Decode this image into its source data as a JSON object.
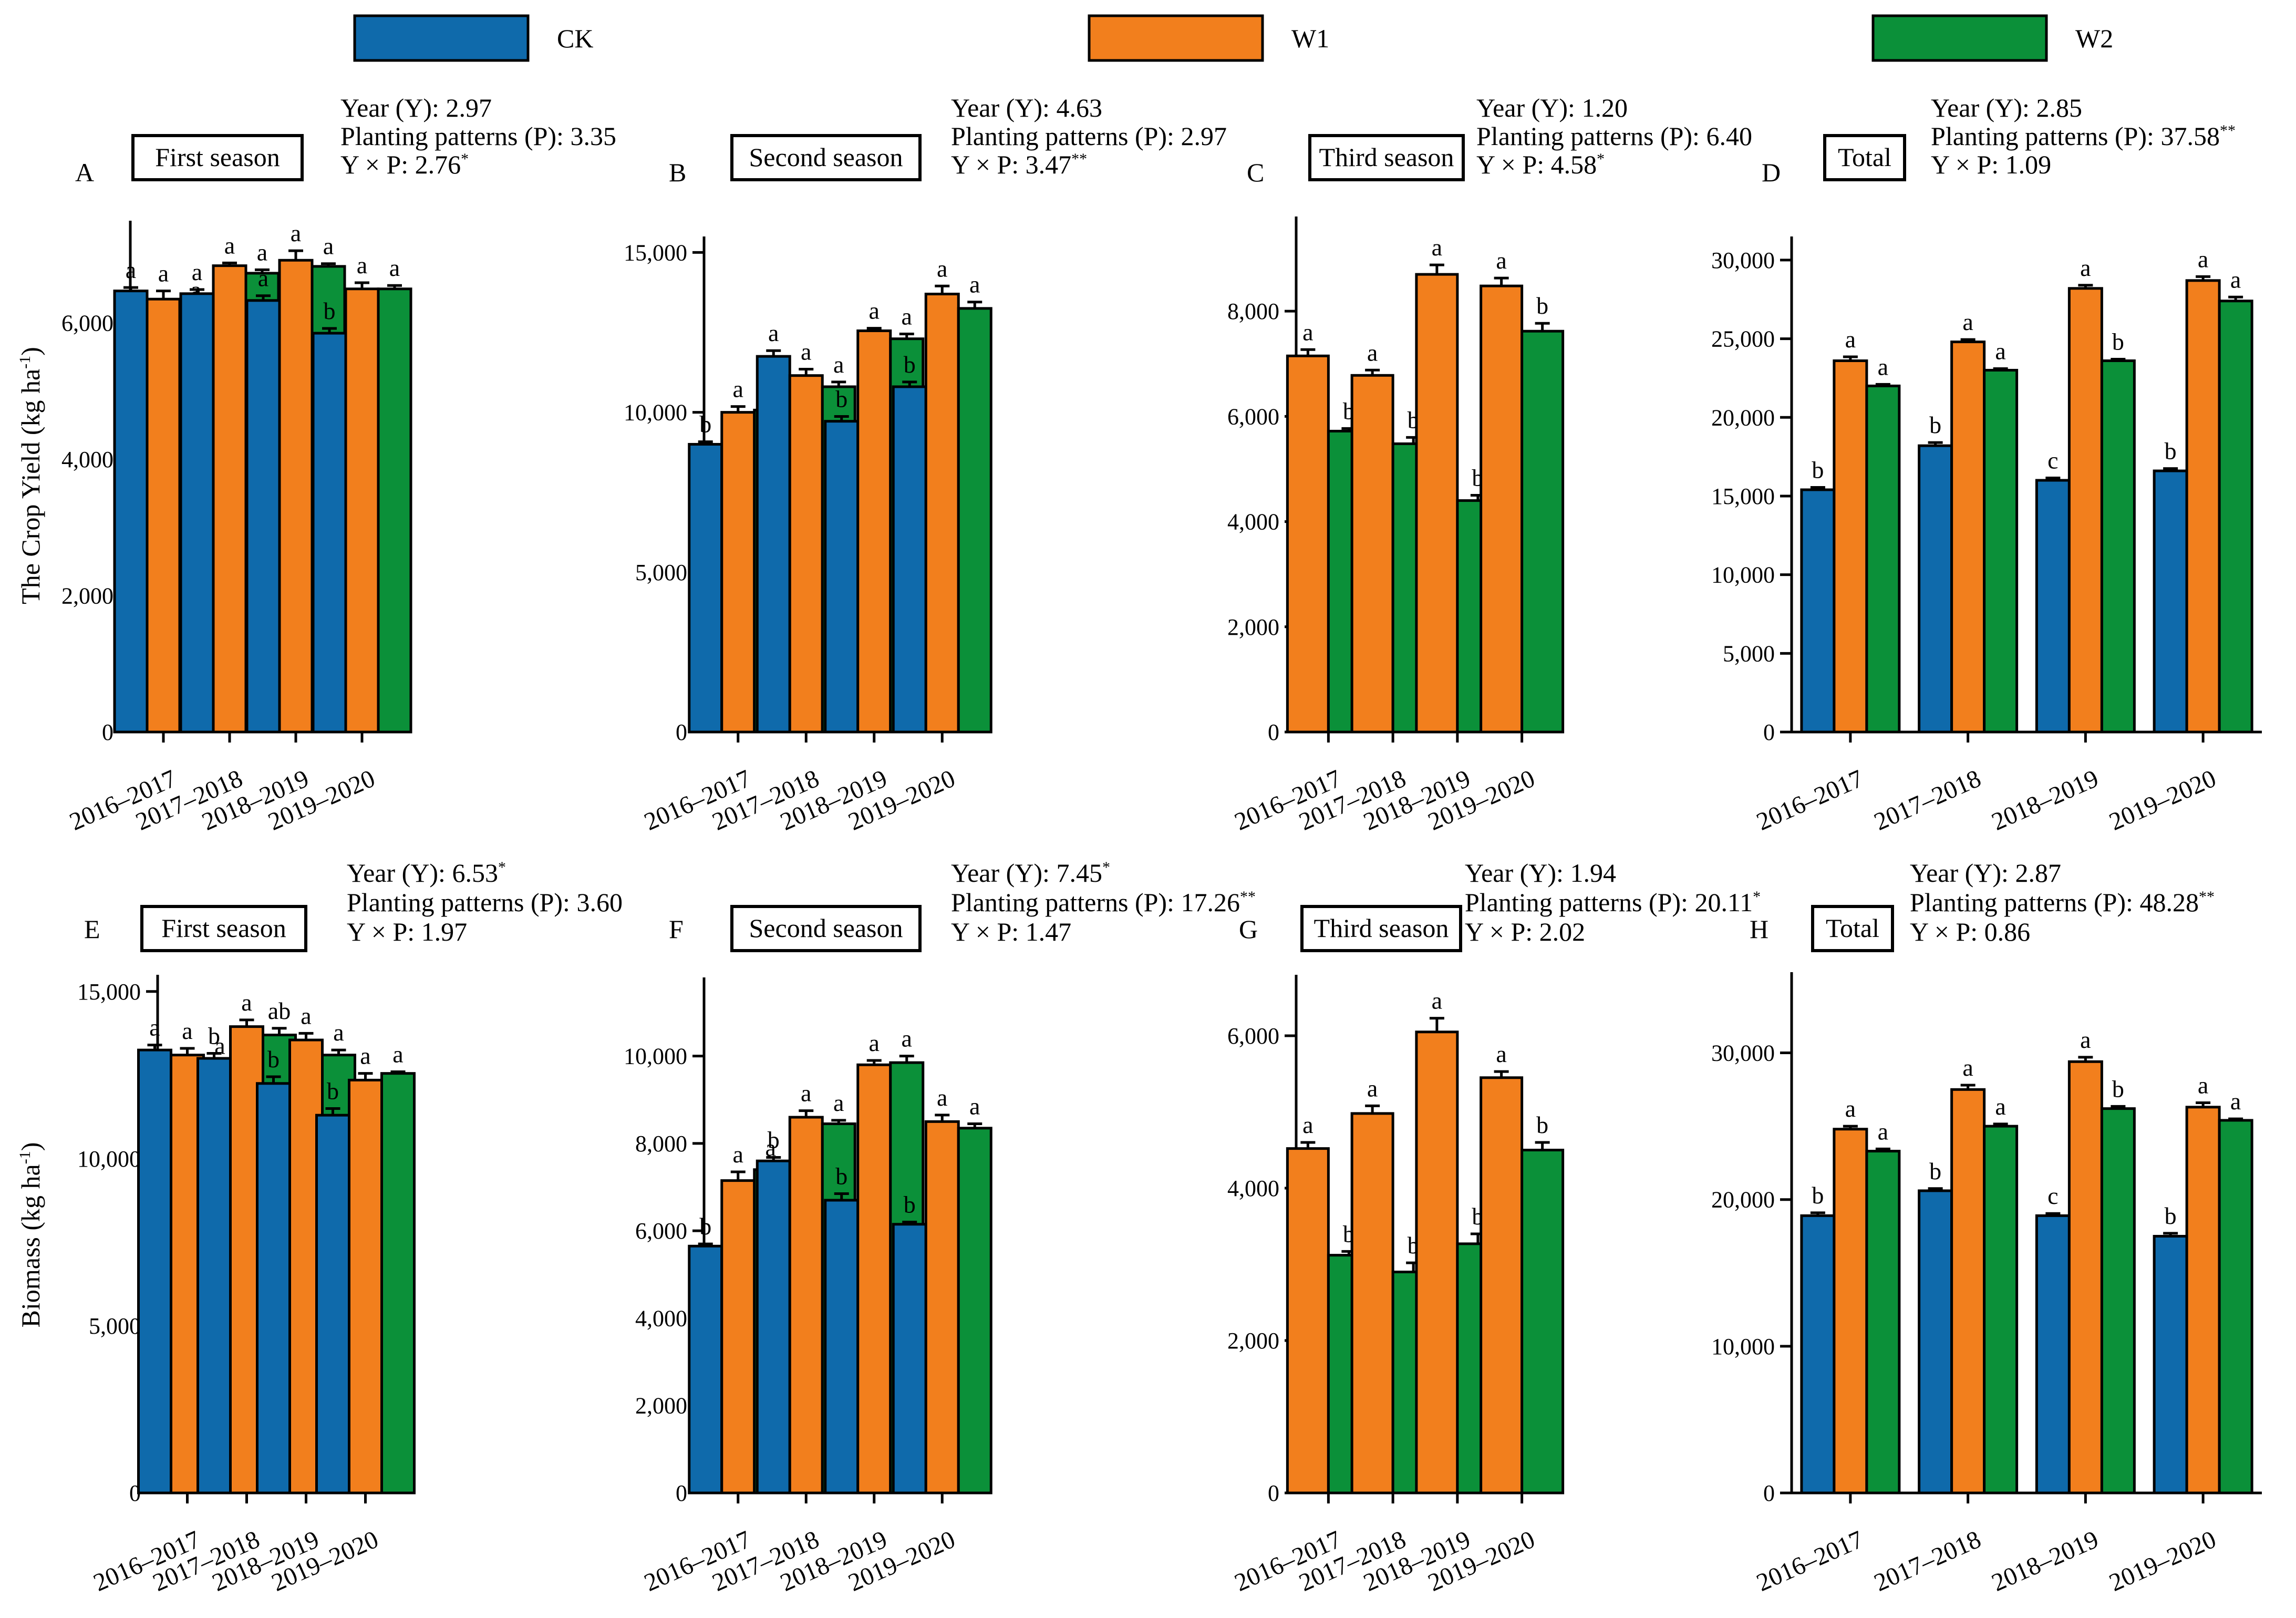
{
  "legend": {
    "items": [
      {
        "name": "CK",
        "color": "#0f6aab"
      },
      {
        "name": "W1",
        "color": "#f27f1d"
      },
      {
        "name": "W2",
        "color": "#0b9039"
      }
    ]
  },
  "y_labels": {
    "yield": "The Crop Yield (kg ha",
    "biomass": "Biomass (kg ha",
    "unit_sup": "-1",
    "close": ")"
  },
  "chart_data": [
    {
      "type": "bar",
      "panel": "A",
      "title": "First season",
      "stats": [
        {
          "text": "Year (Y): 2.97",
          "sup": ""
        },
        {
          "text": "Planting patterns (P): 3.35",
          "sup": ""
        },
        {
          "text": "Y × P: 2.76",
          "sup": "*"
        }
      ],
      "categories": [
        "2016–2017",
        "2017–2018",
        "2018–2019",
        "2019–2020"
      ],
      "series": [
        {
          "name": "CK",
          "values": [
            6470,
            6430,
            6330,
            5850
          ],
          "errors": [
            50,
            60,
            70,
            70
          ],
          "letters": [
            "a",
            "a",
            "a",
            "b"
          ]
        },
        {
          "name": "W1",
          "values": [
            6350,
            6840,
            6920,
            6500
          ],
          "errors": [
            120,
            40,
            140,
            90
          ],
          "letters": [
            "a",
            "a",
            "a",
            "a"
          ]
        },
        {
          "name": "W2",
          "values": [
            6190,
            6730,
            6830,
            6500
          ],
          "errors": [
            40,
            50,
            40,
            50
          ],
          "letters": [
            "a",
            "a",
            "a",
            "a"
          ]
        }
      ],
      "ylim": [
        0,
        7500
      ],
      "yticks": [
        0,
        2000,
        4000,
        6000
      ],
      "yticklabels": [
        "0",
        "2,000",
        "4,000",
        "6,000"
      ],
      "ylabel": "yield"
    },
    {
      "type": "bar",
      "panel": "B",
      "title": "Second season",
      "stats": [
        {
          "text": "Year (Y): 4.63",
          "sup": ""
        },
        {
          "text": "Planting patterns (P): 2.97",
          "sup": ""
        },
        {
          "text": "Y × P: 3.47",
          "sup": "**"
        }
      ],
      "categories": [
        "2016–2017",
        "2017–2018",
        "2018–2019",
        "2019–2020"
      ],
      "series": [
        {
          "name": "CK",
          "values": [
            9000,
            11750,
            9720,
            10800
          ],
          "errors": [
            80,
            180,
            150,
            150
          ],
          "letters": [
            "b",
            "a",
            "b",
            "b"
          ]
        },
        {
          "name": "W1",
          "values": [
            10000,
            11150,
            12550,
            13700
          ],
          "errors": [
            180,
            200,
            80,
            250
          ],
          "letters": [
            "a",
            "a",
            "a",
            "a"
          ]
        },
        {
          "name": "W2",
          "values": [
            10070,
            10800,
            12300,
            13250
          ],
          "errors": [
            80,
            150,
            150,
            200
          ],
          "letters": [
            "a",
            "a",
            "a",
            "a"
          ]
        }
      ],
      "ylim": [
        0,
        15500
      ],
      "yticks": [
        0,
        5000,
        10000,
        15000
      ],
      "yticklabels": [
        "0",
        "5,000",
        "10,000",
        "15,000"
      ]
    },
    {
      "type": "bar",
      "panel": "C",
      "title": "Third season",
      "stats": [
        {
          "text": "Year (Y): 1.20",
          "sup": ""
        },
        {
          "text": "Planting patterns (P): 6.40",
          "sup": ""
        },
        {
          "text": "Y × P: 4.58",
          "sup": "*"
        }
      ],
      "categories": [
        "2016–2017",
        "2017–2018",
        "2018–2019",
        "2019–2020"
      ],
      "series": [
        {
          "name": "W1",
          "values": [
            7150,
            6780,
            8700,
            8480
          ],
          "errors": [
            120,
            100,
            180,
            150
          ],
          "letters": [
            "a",
            "a",
            "a",
            "a"
          ]
        },
        {
          "name": "W2",
          "values": [
            5720,
            5480,
            4400,
            7620
          ],
          "errors": [
            50,
            120,
            100,
            150
          ],
          "letters": [
            "b",
            "b",
            "b",
            "b"
          ]
        }
      ],
      "ylim": [
        0,
        9800
      ],
      "yticks": [
        0,
        2000,
        4000,
        6000,
        8000
      ],
      "yticklabels": [
        "0",
        "2,000",
        "4,000",
        "6,000",
        "8,000"
      ]
    },
    {
      "type": "bar",
      "panel": "D",
      "title": "Total",
      "stats": [
        {
          "text": "Year (Y): 2.85",
          "sup": ""
        },
        {
          "text": "Planting patterns (P): 37.58",
          "sup": "**"
        },
        {
          "text": "Y × P: 1.09",
          "sup": ""
        }
      ],
      "categories": [
        "2016–2017",
        "2017–2018",
        "2018–2019",
        "2019–2020"
      ],
      "series": [
        {
          "name": "CK",
          "values": [
            15400,
            18200,
            16000,
            16600
          ],
          "errors": [
            150,
            200,
            150,
            150
          ],
          "letters": [
            "b",
            "b",
            "c",
            "b"
          ]
        },
        {
          "name": "W1",
          "values": [
            23600,
            24800,
            28200,
            28700
          ],
          "errors": [
            250,
            150,
            200,
            250
          ],
          "letters": [
            "a",
            "a",
            "a",
            "a"
          ]
        },
        {
          "name": "W2",
          "values": [
            22000,
            23000,
            23600,
            27400
          ],
          "errors": [
            100,
            100,
            100,
            250
          ],
          "letters": [
            "a",
            "a",
            "b",
            "a"
          ]
        }
      ],
      "ylim": [
        0,
        31500
      ],
      "yticks": [
        0,
        5000,
        10000,
        15000,
        20000,
        25000,
        30000
      ],
      "yticklabels": [
        "0",
        "5,000",
        "10,000",
        "15,000",
        "20,000",
        "25,000",
        "30,000"
      ]
    },
    {
      "type": "bar",
      "panel": "E",
      "title": "First season",
      "stats": [
        {
          "text": "Year (Y): 6.53",
          "sup": "*"
        },
        {
          "text": "Planting patterns (P): 3.60",
          "sup": ""
        },
        {
          "text": "Y × P: 1.97",
          "sup": ""
        }
      ],
      "categories": [
        "2016–2017",
        "2017–2018",
        "2018–2019",
        "2019–2020"
      ],
      "series": [
        {
          "name": "CK",
          "values": [
            13250,
            13000,
            12250,
            11300
          ],
          "errors": [
            150,
            150,
            200,
            200
          ],
          "letters": [
            "a",
            "b",
            "b",
            "b"
          ]
        },
        {
          "name": "W1",
          "values": [
            13100,
            13950,
            13550,
            12350
          ],
          "errors": [
            200,
            200,
            200,
            200
          ],
          "letters": [
            "a",
            "a",
            "a",
            "a"
          ]
        },
        {
          "name": "W2",
          "values": [
            12750,
            13700,
            13100,
            12550
          ],
          "errors": [
            100,
            200,
            150,
            50
          ],
          "letters": [
            "a",
            "ab",
            "a",
            "a"
          ]
        }
      ],
      "ylim": [
        0,
        15500
      ],
      "yticks": [
        0,
        5000,
        10000,
        15000
      ],
      "yticklabels": [
        "0",
        "5,000",
        "10,000",
        "15,000"
      ],
      "ylabel": "biomass"
    },
    {
      "type": "bar",
      "panel": "F",
      "title": "Second season",
      "stats": [
        {
          "text": "Year (Y): 7.45",
          "sup": "*"
        },
        {
          "text": "Planting patterns (P): 17.26",
          "sup": "**"
        },
        {
          "text": "Y × P: 1.47",
          "sup": ""
        }
      ],
      "categories": [
        "2016–2017",
        "2017–2018",
        "2018–2019",
        "2019–2020"
      ],
      "series": [
        {
          "name": "CK",
          "values": [
            5650,
            7600,
            6700,
            6150
          ],
          "errors": [
            50,
            80,
            150,
            50
          ],
          "letters": [
            "b",
            "b",
            "b",
            "b"
          ]
        },
        {
          "name": "W1",
          "values": [
            7150,
            8600,
            9800,
            8500
          ],
          "errors": [
            200,
            150,
            100,
            150
          ],
          "letters": [
            "a",
            "a",
            "a",
            "a"
          ]
        },
        {
          "name": "W2",
          "values": [
            7400,
            8450,
            9850,
            8350
          ],
          "errors": [
            100,
            80,
            150,
            100
          ],
          "letters": [
            "a",
            "a",
            "a",
            "a"
          ]
        }
      ],
      "ylim": [
        0,
        11800
      ],
      "yticks": [
        0,
        2000,
        4000,
        6000,
        8000,
        10000
      ],
      "yticklabels": [
        "0",
        "2,000",
        "4,000",
        "6,000",
        "8,000",
        "10,000"
      ]
    },
    {
      "type": "bar",
      "panel": "G",
      "title": "Third season",
      "stats": [
        {
          "text": "Year (Y): 1.94",
          "sup": ""
        },
        {
          "text": "Planting patterns (P): 20.11",
          "sup": "*"
        },
        {
          "text": "Y × P: 2.02",
          "sup": ""
        }
      ],
      "categories": [
        "2016–2017",
        "2017–2018",
        "2018–2019",
        "2019–2020"
      ],
      "series": [
        {
          "name": "W1",
          "values": [
            4520,
            4980,
            6050,
            5450
          ],
          "errors": [
            80,
            100,
            180,
            80
          ],
          "letters": [
            "a",
            "a",
            "a",
            "a"
          ]
        },
        {
          "name": "W2",
          "values": [
            3120,
            2900,
            3270,
            4500
          ],
          "errors": [
            50,
            120,
            130,
            100
          ],
          "letters": [
            "b",
            "b",
            "b",
            "b"
          ]
        }
      ],
      "ylim": [
        0,
        6800
      ],
      "yticks": [
        0,
        2000,
        4000,
        6000
      ],
      "yticklabels": [
        "0",
        "2,000",
        "4,000",
        "6,000"
      ]
    },
    {
      "type": "bar",
      "panel": "H",
      "title": "Total",
      "stats": [
        {
          "text": "Year (Y): 2.87",
          "sup": ""
        },
        {
          "text": "Planting patterns (P): 48.28",
          "sup": "**"
        },
        {
          "text": "Y × P: 0.86",
          "sup": ""
        }
      ],
      "categories": [
        "2016–2017",
        "2017–2018",
        "2018–2019",
        "2019–2020"
      ],
      "series": [
        {
          "name": "CK",
          "values": [
            18900,
            20600,
            18900,
            17500
          ],
          "errors": [
            200,
            150,
            150,
            200
          ],
          "letters": [
            "b",
            "b",
            "c",
            "b"
          ]
        },
        {
          "name": "W1",
          "values": [
            24800,
            27500,
            29400,
            26300
          ],
          "errors": [
            200,
            300,
            300,
            300
          ],
          "letters": [
            "a",
            "a",
            "a",
            "a"
          ]
        },
        {
          "name": "W2",
          "values": [
            23300,
            25000,
            26200,
            25400
          ],
          "errors": [
            150,
            150,
            150,
            100
          ],
          "letters": [
            "a",
            "a",
            "b",
            "a"
          ]
        }
      ],
      "ylim": [
        0,
        35500
      ],
      "yticks": [
        0,
        10000,
        20000,
        30000
      ],
      "yticklabels": [
        "0",
        "10,000",
        "20,000",
        "30,000"
      ]
    }
  ]
}
